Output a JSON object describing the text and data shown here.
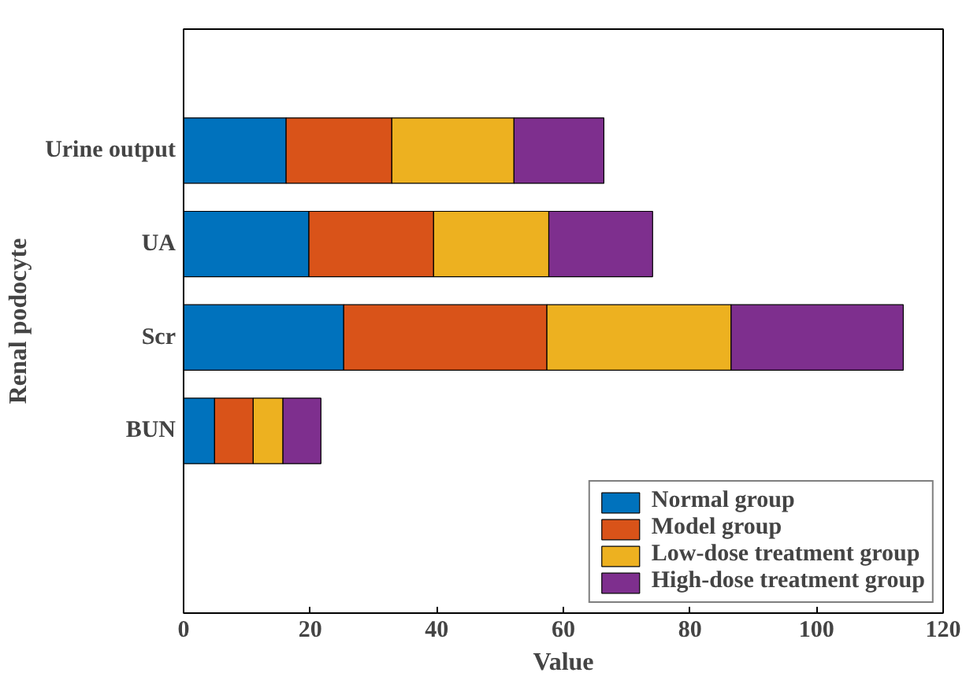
{
  "chart_data": {
    "type": "bar",
    "orientation": "horizontal",
    "stacked": true,
    "xlabel": "Value",
    "ylabel": "Renal podocyte",
    "categories": [
      "Urine output",
      "UA",
      "Scr",
      "BUN"
    ],
    "series": [
      {
        "name": "Normal group",
        "color": "#0072bd",
        "values": [
          16.2,
          19.8,
          25.3,
          4.9
        ]
      },
      {
        "name": "Model group",
        "color": "#d95319",
        "values": [
          16.7,
          19.7,
          32.1,
          6.1
        ]
      },
      {
        "name": "Low-dose treatment group",
        "color": "#edb120",
        "values": [
          19.3,
          18.2,
          29.1,
          4.7
        ]
      },
      {
        "name": "High-dose treatment group",
        "color": "#7e2f8e",
        "values": [
          14.2,
          16.4,
          27.2,
          6.0
        ]
      }
    ],
    "xlim": [
      0,
      120
    ],
    "xticks": [
      0,
      20,
      40,
      60,
      80,
      100,
      120
    ],
    "grid": false,
    "legend": "bottom right"
  }
}
